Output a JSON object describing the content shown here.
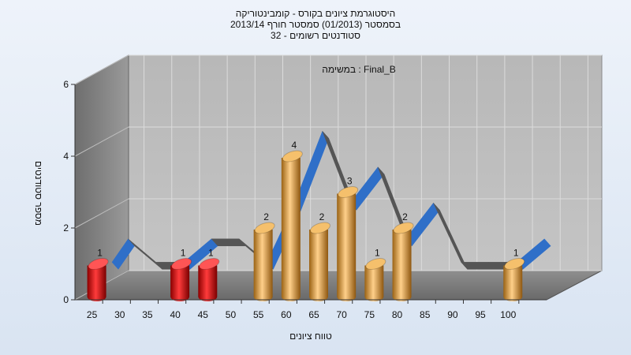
{
  "title_lines": [
    "היסטוגרמת ציונים בקורס - קומבינטוריקה",
    "בסמסטר (01/2013) סמסטר חורף 2013/14",
    "32 - סטודנטים רשומים"
  ],
  "chart_data": {
    "type": "bar",
    "subtitle": "במשימה : Final_B",
    "xlabel": "טווח ציונים",
    "ylabel": "מספר סטודנטים",
    "ylim": [
      0,
      6
    ],
    "yticks": [
      "0",
      "2",
      "4",
      "6"
    ],
    "grid": true,
    "categories": [
      "25",
      "30",
      "35",
      "40",
      "45",
      "50",
      "55",
      "60",
      "65",
      "70",
      "75",
      "80",
      "85",
      "90",
      "95",
      "100"
    ],
    "values": [
      1,
      0,
      0,
      1,
      1,
      0,
      2,
      4,
      2,
      3,
      1,
      2,
      0,
      0,
      0,
      1
    ],
    "data_labels": [
      "1",
      "",
      "",
      "1",
      "1",
      "",
      "2",
      "4",
      "2",
      "3",
      "1",
      "2",
      "",
      "",
      "",
      "1"
    ],
    "bar_colors": [
      "#e01818",
      "",
      "",
      "#e01818",
      "#e01818",
      "",
      "#e8a43a",
      "#e8a43a",
      "#e8a43a",
      "#e8a43a",
      "#e8a43a",
      "#e8a43a",
      "",
      "",
      "",
      "#e8a43a"
    ],
    "trend_colors": {
      "rising": "#2f6fc8",
      "flat": "#555555"
    }
  }
}
